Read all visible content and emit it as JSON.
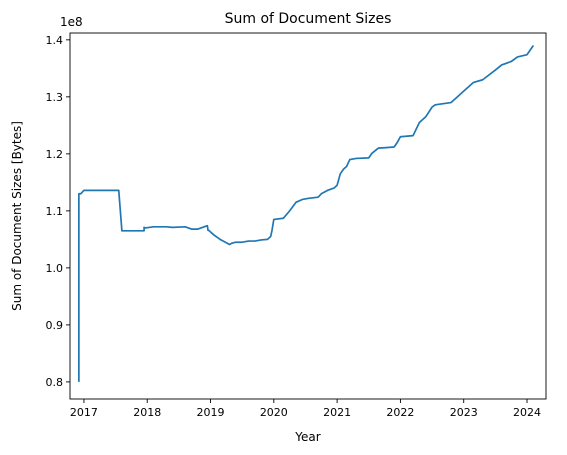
{
  "chart_data": {
    "type": "line",
    "title": "Sum of Document Sizes",
    "xlabel": "Year",
    "ylabel": "Sum of Document Sizes [Bytes]",
    "y_offset_label": "1e8",
    "y_scale_factor": 100000000,
    "xlim": [
      2016.78,
      2024.3
    ],
    "ylim": [
      0.77,
      1.412
    ],
    "x_ticks": [
      {
        "value": 2017,
        "label": "2017"
      },
      {
        "value": 2018,
        "label": "2018"
      },
      {
        "value": 2019,
        "label": "2019"
      },
      {
        "value": 2020,
        "label": "2020"
      },
      {
        "value": 2021,
        "label": "2021"
      },
      {
        "value": 2022,
        "label": "2022"
      },
      {
        "value": 2023,
        "label": "2023"
      },
      {
        "value": 2024,
        "label": "2024"
      }
    ],
    "y_ticks": [
      {
        "value": 0.8,
        "label": "0.8"
      },
      {
        "value": 0.9,
        "label": "0.9"
      },
      {
        "value": 1.0,
        "label": "1.0"
      },
      {
        "value": 1.1,
        "label": "1.1"
      },
      {
        "value": 1.2,
        "label": "1.2"
      },
      {
        "value": 1.3,
        "label": "1.3"
      },
      {
        "value": 1.4,
        "label": "1.4"
      }
    ],
    "grid": false,
    "legend": "none",
    "series": [
      {
        "color": "#1f77b4",
        "x": [
          2016.92,
          2016.92,
          2016.95,
          2017.0,
          2017.55,
          2017.6,
          2017.95,
          2017.95,
          2017.97,
          2018.1,
          2018.3,
          2018.4,
          2018.6,
          2018.7,
          2018.8,
          2018.95,
          2018.96,
          2018.97,
          2019.05,
          2019.15,
          2019.25,
          2019.3,
          2019.33,
          2019.4,
          2019.5,
          2019.6,
          2019.7,
          2019.8,
          2019.9,
          2019.95,
          2019.97,
          2020.0,
          2020.15,
          2020.25,
          2020.35,
          2020.45,
          2020.55,
          2020.7,
          2020.75,
          2020.85,
          2020.95,
          2021.0,
          2021.05,
          2021.1,
          2021.15,
          2021.2,
          2021.3,
          2021.5,
          2021.55,
          2021.65,
          2021.9,
          2021.95,
          2022.0,
          2022.2,
          2022.3,
          2022.4,
          2022.5,
          2022.55,
          2022.8,
          2022.9,
          2023.0,
          2023.1,
          2023.15,
          2023.3,
          2023.5,
          2023.6,
          2023.75,
          2023.85,
          2024.0,
          2024.05,
          2024.1
        ],
        "y": [
          0.8,
          1.13,
          1.13,
          1.136,
          1.136,
          1.065,
          1.065,
          1.071,
          1.07,
          1.072,
          1.072,
          1.071,
          1.072,
          1.068,
          1.068,
          1.074,
          1.066,
          1.066,
          1.058,
          1.05,
          1.044,
          1.041,
          1.043,
          1.045,
          1.045,
          1.047,
          1.047,
          1.049,
          1.05,
          1.055,
          1.065,
          1.085,
          1.087,
          1.1,
          1.115,
          1.12,
          1.122,
          1.124,
          1.13,
          1.136,
          1.14,
          1.145,
          1.165,
          1.173,
          1.178,
          1.19,
          1.192,
          1.193,
          1.201,
          1.21,
          1.212,
          1.22,
          1.23,
          1.232,
          1.255,
          1.265,
          1.282,
          1.286,
          1.29,
          1.3,
          1.31,
          1.32,
          1.325,
          1.33,
          1.347,
          1.356,
          1.362,
          1.37,
          1.374,
          1.382,
          1.39
        ]
      }
    ]
  }
}
